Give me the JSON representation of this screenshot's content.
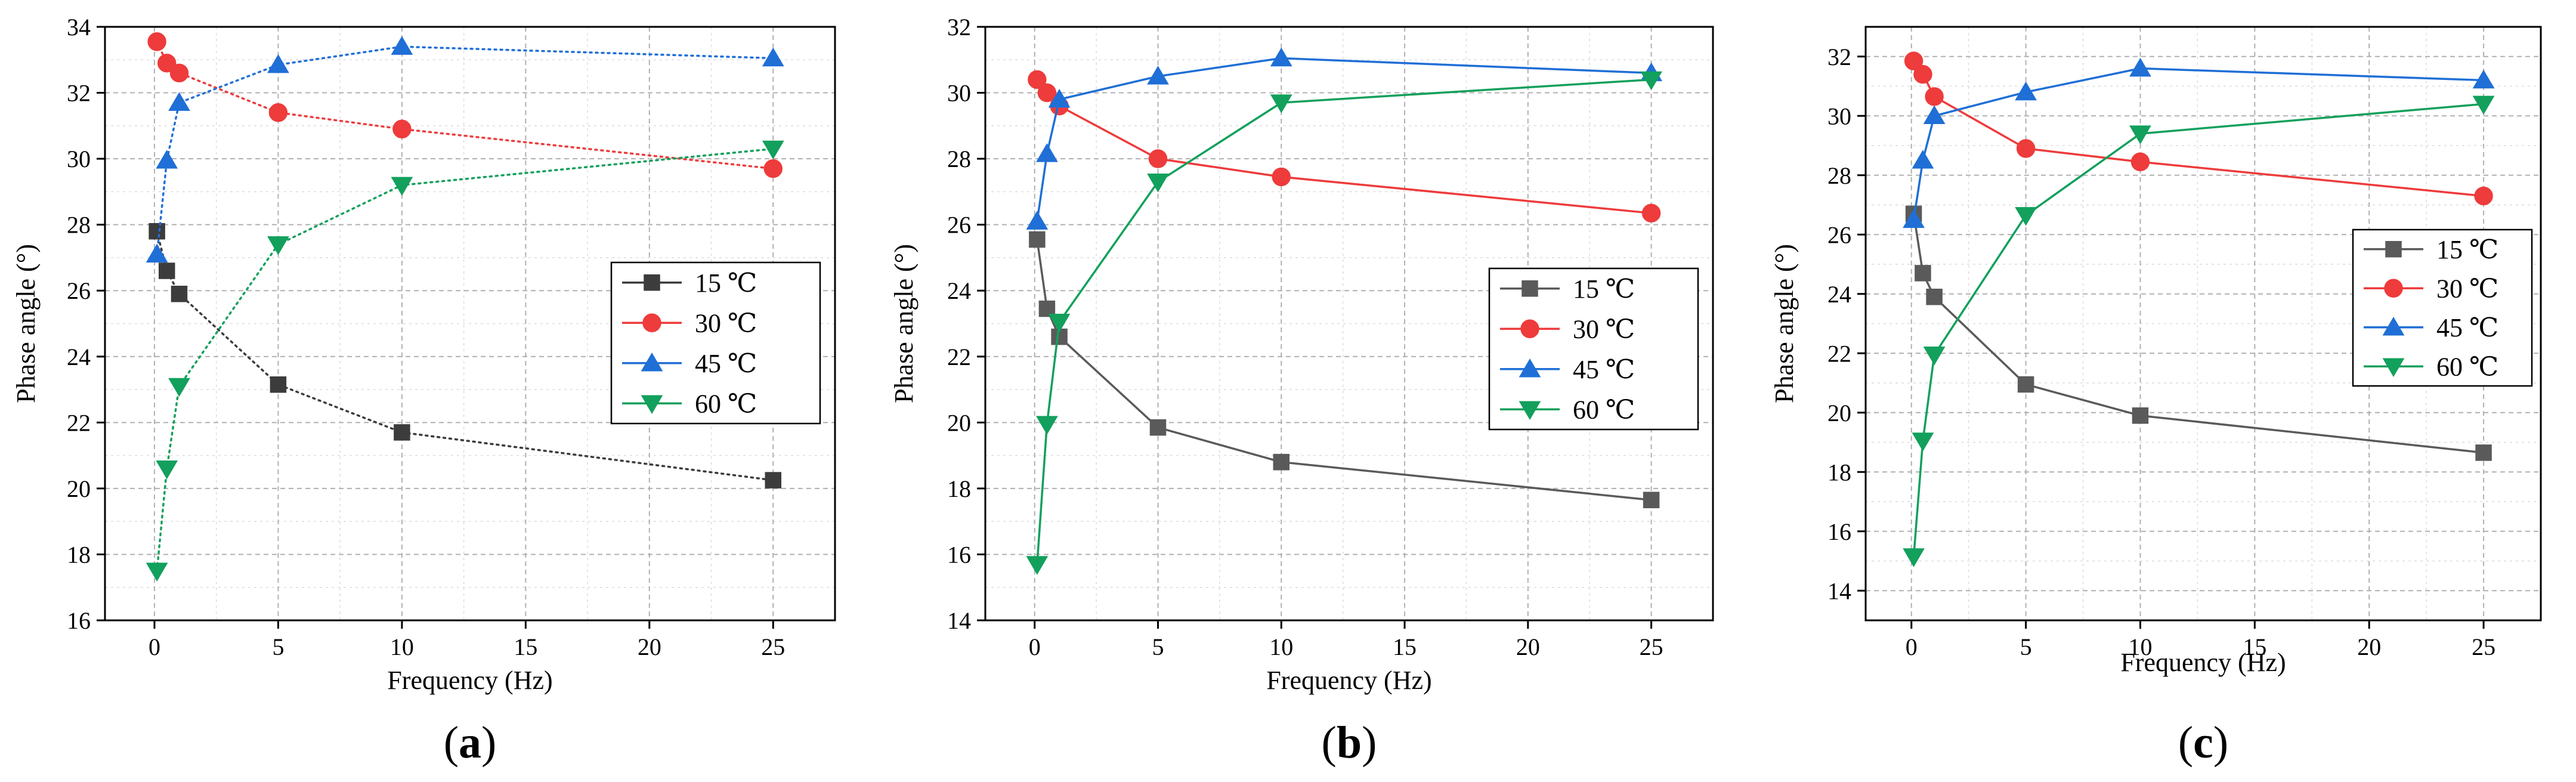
{
  "chart_data": [
    {
      "type": "line",
      "panel_label": "a",
      "panel_label_open": "(",
      "panel_label_close": ")",
      "xlabel": "Frequency (Hz)",
      "ylabel": "Phase angle (°)",
      "xlim": [
        -2,
        27.5
      ],
      "ylim": [
        16,
        34
      ],
      "xticks": [
        "0",
        "5",
        "10",
        "15",
        "20",
        "25"
      ],
      "yticks": [
        "16",
        "18",
        "20",
        "22",
        "24",
        "26",
        "28",
        "30",
        "32",
        "34"
      ],
      "legend_position": "center-right",
      "line_style": "dotted",
      "series": [
        {
          "name": "15 ℃",
          "color": "#3c3c3c",
          "marker": "square",
          "x": [
            0.1,
            0.5,
            1,
            5,
            10,
            25
          ],
          "y": [
            27.8,
            26.6,
            25.9,
            23.15,
            21.7,
            20.25
          ]
        },
        {
          "name": "30 ℃",
          "color": "#ee3b3b",
          "marker": "circle",
          "x": [
            0.1,
            0.5,
            1,
            5,
            10,
            25
          ],
          "y": [
            33.55,
            32.9,
            32.6,
            31.4,
            30.9,
            29.7
          ]
        },
        {
          "name": "45 ℃",
          "color": "#1f6fd6",
          "marker": "triangle-up",
          "x": [
            0.1,
            0.5,
            1,
            5,
            10,
            25
          ],
          "y": [
            27.1,
            29.95,
            31.7,
            32.85,
            33.4,
            33.05
          ]
        },
        {
          "name": "60 ℃",
          "color": "#12a05c",
          "marker": "triangle-down",
          "x": [
            0.1,
            0.5,
            1,
            5,
            10,
            25
          ],
          "y": [
            17.5,
            20.6,
            23.1,
            27.4,
            29.2,
            30.3
          ]
        }
      ]
    },
    {
      "type": "line",
      "panel_label": "b",
      "panel_label_open": "(",
      "panel_label_close": ")",
      "xlabel": "Frequency (Hz)",
      "ylabel": "Phase angle (°)",
      "xlim": [
        -2,
        27.5
      ],
      "ylim": [
        14,
        32
      ],
      "xticks": [
        "0",
        "5",
        "10",
        "15",
        "20",
        "25"
      ],
      "yticks": [
        "14",
        "16",
        "18",
        "20",
        "22",
        "24",
        "26",
        "28",
        "30",
        "32"
      ],
      "legend_position": "center-right",
      "line_style": "solid",
      "series": [
        {
          "name": "15 ℃",
          "color": "#5a5a5a",
          "marker": "square",
          "x": [
            0.1,
            0.5,
            1,
            5,
            10,
            25
          ],
          "y": [
            25.55,
            23.45,
            22.6,
            19.85,
            18.8,
            17.65
          ]
        },
        {
          "name": "30 ℃",
          "color": "#ee3b3b",
          "marker": "circle",
          "x": [
            0.1,
            0.5,
            1,
            5,
            10,
            25
          ],
          "y": [
            30.4,
            30.0,
            29.6,
            28.0,
            27.45,
            26.35
          ]
        },
        {
          "name": "45 ℃",
          "color": "#1f6fd6",
          "marker": "triangle-up",
          "x": [
            0.1,
            0.5,
            1,
            5,
            10,
            25
          ],
          "y": [
            26.1,
            28.15,
            29.8,
            30.5,
            31.05,
            30.6
          ]
        },
        {
          "name": "60 ℃",
          "color": "#12a05c",
          "marker": "triangle-down",
          "x": [
            0.1,
            0.5,
            1,
            5,
            10,
            25
          ],
          "y": [
            15.7,
            19.95,
            23.05,
            27.3,
            29.7,
            30.4
          ]
        }
      ]
    },
    {
      "type": "line",
      "panel_label": "c",
      "panel_label_open": "(",
      "panel_label_close": ")",
      "xlabel": "Frequency (Hz)",
      "ylabel": "Phase angle (°)",
      "xlim": [
        -2,
        27.5
      ],
      "ylim": [
        13,
        33
      ],
      "xticks": [
        "0",
        "5",
        "10",
        "15",
        "20",
        "25"
      ],
      "yticks": [
        "14",
        "16",
        "18",
        "20",
        "22",
        "24",
        "26",
        "28",
        "30",
        "32"
      ],
      "legend_position": "center-right",
      "line_style": "solid",
      "series": [
        {
          "name": "15 ℃",
          "color": "#5a5a5a",
          "marker": "square",
          "x": [
            0.1,
            0.5,
            1,
            5,
            10,
            25
          ],
          "y": [
            26.7,
            24.7,
            23.9,
            20.95,
            19.9,
            18.65
          ]
        },
        {
          "name": "30 ℃",
          "color": "#ee3b3b",
          "marker": "circle",
          "x": [
            0.1,
            0.5,
            1,
            5,
            10,
            25
          ],
          "y": [
            31.85,
            31.4,
            30.65,
            28.9,
            28.45,
            27.3
          ]
        },
        {
          "name": "45 ℃",
          "color": "#1f6fd6",
          "marker": "triangle-up",
          "x": [
            0.1,
            0.5,
            1,
            5,
            10,
            25
          ],
          "y": [
            26.5,
            28.5,
            30.0,
            30.8,
            31.6,
            31.2
          ]
        },
        {
          "name": "60 ℃",
          "color": "#12a05c",
          "marker": "triangle-down",
          "x": [
            0.1,
            0.5,
            1,
            5,
            10,
            25
          ],
          "y": [
            15.15,
            19.05,
            21.95,
            26.65,
            29.4,
            30.4
          ]
        }
      ]
    }
  ]
}
